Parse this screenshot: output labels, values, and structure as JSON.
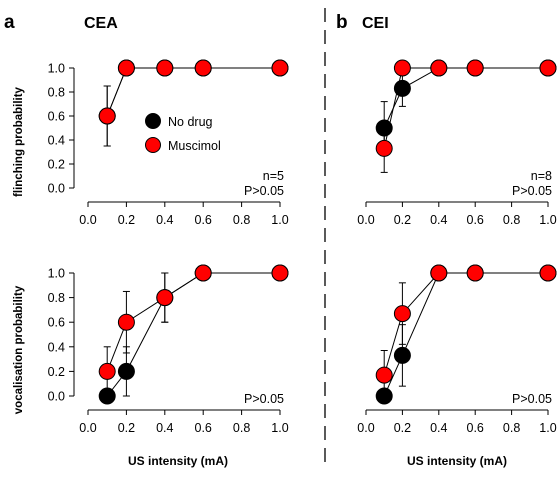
{
  "colors": {
    "no_drug": "#000000",
    "muscimol": "#ff0000",
    "axis": "#000000"
  },
  "panels": {
    "a": {
      "letter": "a",
      "title": "CEA"
    },
    "b": {
      "letter": "b",
      "title": "CEI"
    }
  },
  "labels": {
    "y_top": "flinching probability",
    "y_bottom": "vocalisation probability",
    "x": "US intensity (mA)"
  },
  "legend": [
    {
      "name": "No drug",
      "color": "#000000"
    },
    {
      "name": "Muscimol",
      "color": "#ff0000"
    }
  ],
  "chart_data": [
    {
      "id": "cea-flinching",
      "type": "line",
      "xlim": [
        0,
        1.0
      ],
      "ylim": [
        0,
        1.0
      ],
      "xticks": [
        "0.0",
        "0.2",
        "0.4",
        "0.6",
        "0.8",
        "1.0"
      ],
      "yticks": [
        "0.0",
        "0.2",
        "0.4",
        "0.6",
        "0.8",
        "1.0"
      ],
      "annotations": [
        "n=5",
        "P>0.05"
      ],
      "series": [
        {
          "name": "No drug",
          "x": [
            0.1,
            0.2,
            0.4,
            0.6,
            1.0
          ],
          "y": [
            0.6,
            1.0,
            1.0,
            1.0,
            1.0
          ],
          "err": [
            0.25,
            0,
            0,
            0,
            0
          ]
        },
        {
          "name": "Muscimol",
          "x": [
            0.1,
            0.2,
            0.4,
            0.6,
            1.0
          ],
          "y": [
            0.6,
            1.0,
            1.0,
            1.0,
            1.0
          ],
          "err": [
            0.25,
            0,
            0,
            0,
            0
          ]
        }
      ]
    },
    {
      "id": "cei-flinching",
      "type": "line",
      "xlim": [
        0,
        1.0
      ],
      "ylim": [
        0,
        1.0
      ],
      "xticks": [
        "0.0",
        "0.2",
        "0.4",
        "0.6",
        "0.8",
        "1.0"
      ],
      "yticks": [],
      "annotations": [
        "n=8",
        "P>0.05"
      ],
      "series": [
        {
          "name": "No drug",
          "x": [
            0.1,
            0.2,
            0.4,
            0.6,
            1.0
          ],
          "y": [
            0.5,
            0.83,
            1.0,
            1.0,
            1.0
          ],
          "err": [
            0.22,
            0.15,
            0,
            0,
            0
          ]
        },
        {
          "name": "Muscimol",
          "x": [
            0.1,
            0.2,
            0.4,
            0.6,
            1.0
          ],
          "y": [
            0.33,
            1.0,
            1.0,
            1.0,
            1.0
          ],
          "err": [
            0.2,
            0,
            0,
            0,
            0
          ]
        }
      ]
    },
    {
      "id": "cea-vocalisation",
      "type": "line",
      "xlim": [
        0,
        1.0
      ],
      "ylim": [
        0,
        1.0
      ],
      "xticks": [
        "0.0",
        "0.2",
        "0.4",
        "0.6",
        "0.8",
        "1.0"
      ],
      "yticks": [
        "0.0",
        "0.2",
        "0.4",
        "0.6",
        "0.8",
        "1.0"
      ],
      "annotations": [
        "P>0.05"
      ],
      "series": [
        {
          "name": "No drug",
          "x": [
            0.1,
            0.2,
            0.4,
            0.6,
            1.0
          ],
          "y": [
            0.0,
            0.2,
            0.8,
            1.0,
            1.0
          ],
          "err": [
            0,
            0.2,
            0.2,
            0,
            0
          ]
        },
        {
          "name": "Muscimol",
          "x": [
            0.1,
            0.2,
            0.4,
            0.6,
            1.0
          ],
          "y": [
            0.2,
            0.6,
            0.8,
            1.0,
            1.0
          ],
          "err": [
            0.2,
            0.25,
            0.2,
            0,
            0
          ]
        }
      ]
    },
    {
      "id": "cei-vocalisation",
      "type": "line",
      "xlim": [
        0,
        1.0
      ],
      "ylim": [
        0,
        1.0
      ],
      "xticks": [
        "0.0",
        "0.2",
        "0.4",
        "0.6",
        "0.8",
        "1.0"
      ],
      "yticks": [],
      "annotations": [
        "P>0.05"
      ],
      "series": [
        {
          "name": "No drug",
          "x": [
            0.1,
            0.2,
            0.4,
            0.6,
            1.0
          ],
          "y": [
            0.0,
            0.33,
            1.0,
            1.0,
            1.0
          ],
          "err": [
            0,
            0.25,
            0,
            0,
            0
          ]
        },
        {
          "name": "Muscimol",
          "x": [
            0.1,
            0.2,
            0.4,
            0.6,
            1.0
          ],
          "y": [
            0.17,
            0.67,
            1.0,
            1.0,
            1.0
          ],
          "err": [
            0.2,
            0.25,
            0,
            0,
            0
          ]
        }
      ]
    }
  ]
}
